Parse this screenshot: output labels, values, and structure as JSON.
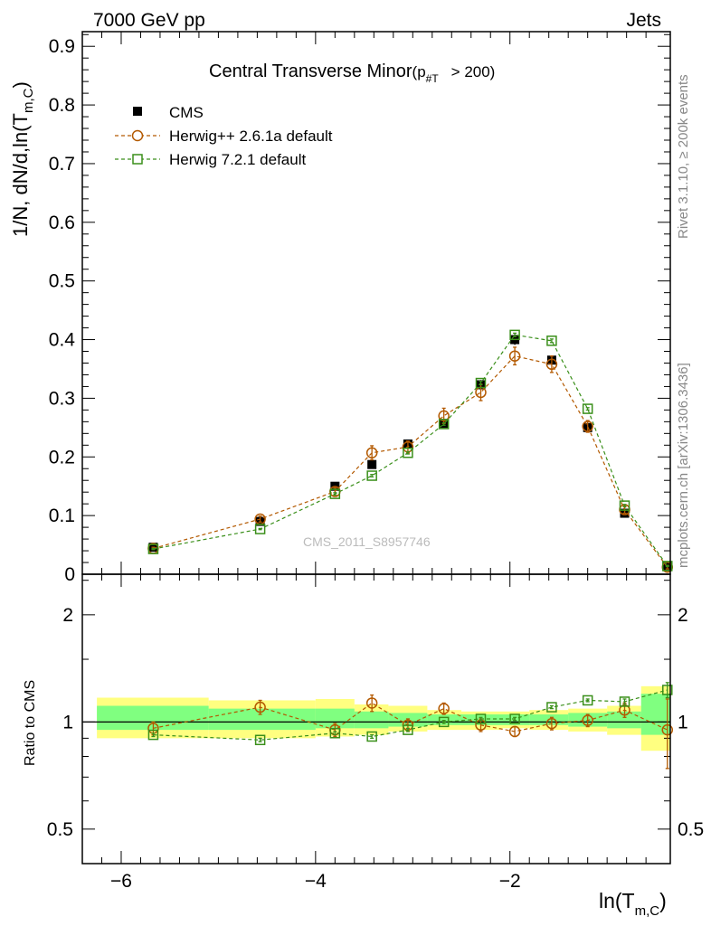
{
  "header": {
    "left": "7000 GeV pp",
    "right": "Jets"
  },
  "side_labels": {
    "top": "Rivet 3.1.10, ≥ 200k events",
    "bottom": "mcplots.cern.ch [arXiv:1306.3436]"
  },
  "watermark": "CMS_2011_S8957746",
  "colors": {
    "cms": "#000000",
    "herwig_pp": "#b35900",
    "herwig7": "#3a8f1a",
    "band_outer": "#ffff80",
    "band_inner": "#80ff80"
  },
  "chart_data": [
    {
      "type": "line",
      "title": "Central Transverse Minor",
      "title_selection": "(p",
      "title_selection_sub": "#T",
      "title_selection_cut": "> 200)",
      "ylabel": "1/N",
      "ylabel_rest": ", dN/d,ln(T",
      "ylabel_sub": "m,C",
      "ylabel_close": ")",
      "xlim": [
        -6.4,
        -0.35
      ],
      "ylim": [
        0,
        0.925
      ],
      "yticks": [
        0,
        0.1,
        0.2,
        0.3,
        0.4,
        0.5,
        0.6,
        0.7,
        0.8,
        0.9
      ],
      "ytick_labels": [
        "0",
        "0.1",
        "0.2",
        "0.3",
        "0.4",
        "0.5",
        "0.6",
        "0.7",
        "0.8",
        "0.9"
      ],
      "legend_position": "top-left",
      "series": [
        {
          "name": "CMS",
          "marker": "filled-square",
          "x": [
            -5.67,
            -4.57,
            -3.8,
            -3.42,
            -3.05,
            -2.68,
            -2.3,
            -1.95,
            -1.57,
            -1.2,
            -0.82,
            -0.38
          ],
          "y": [
            0.046,
            0.09,
            0.15,
            0.187,
            0.222,
            0.257,
            0.323,
            0.4,
            0.365,
            0.25,
            0.104,
            0.013
          ],
          "err": [
            0.003,
            0.005,
            0.006,
            0.006,
            0.006,
            0.007,
            0.008,
            0.009,
            0.008,
            0.007,
            0.005,
            0.002
          ]
        },
        {
          "name": "Herwig++ 2.6.1a default",
          "marker": "open-circle",
          "x": [
            -5.67,
            -4.57,
            -3.8,
            -3.42,
            -3.05,
            -2.68,
            -2.3,
            -1.95,
            -1.57,
            -1.2,
            -0.82,
            -0.38
          ],
          "y": [
            0.044,
            0.094,
            0.141,
            0.207,
            0.217,
            0.27,
            0.31,
            0.372,
            0.358,
            0.252,
            0.11,
            0.012
          ],
          "err": [
            0.002,
            0.005,
            0.006,
            0.012,
            0.01,
            0.013,
            0.014,
            0.015,
            0.014,
            0.01,
            0.006,
            0.003
          ]
        },
        {
          "name": "Herwig 7.2.1 default",
          "marker": "open-square",
          "x": [
            -5.67,
            -4.57,
            -3.8,
            -3.42,
            -3.05,
            -2.68,
            -2.3,
            -1.95,
            -1.57,
            -1.2,
            -0.82,
            -0.38
          ],
          "y": [
            0.043,
            0.077,
            0.137,
            0.168,
            0.207,
            0.256,
            0.326,
            0.408,
            0.398,
            0.282,
            0.117,
            0.014
          ],
          "err": [
            0.001,
            0.001,
            0.002,
            0.002,
            0.002,
            0.002,
            0.003,
            0.003,
            0.003,
            0.002,
            0.002,
            0.001
          ]
        }
      ]
    },
    {
      "type": "line",
      "ylabel": "Ratio to CMS",
      "xlabel": "ln(T",
      "xlabel_sub": "m,C",
      "xlabel_close": ")",
      "xlim": [
        -6.4,
        -0.35
      ],
      "ylim": [
        0.4,
        2.6
      ],
      "log_y": true,
      "yticks": [
        0.5,
        1,
        2
      ],
      "ytick_labels": [
        "0.5",
        "1",
        "2"
      ],
      "xticks": [
        -6,
        -4,
        -2
      ],
      "xtick_labels": [
        "−6",
        "−4",
        "−2"
      ],
      "reference_line": 1,
      "uncertainty_bands": {
        "bin_edges": [
          -6.25,
          -5.1,
          -4.0,
          -3.6,
          -3.25,
          -2.85,
          -2.5,
          -2.1,
          -1.8,
          -1.4,
          -1.0,
          -0.65,
          -0.35
        ],
        "outer": [
          [
            0.9,
            1.17
          ],
          [
            0.9,
            1.15
          ],
          [
            0.91,
            1.16
          ],
          [
            0.92,
            1.12
          ],
          [
            0.94,
            1.11
          ],
          [
            0.95,
            1.08
          ],
          [
            0.95,
            1.07
          ],
          [
            0.96,
            1.07
          ],
          [
            0.95,
            1.08
          ],
          [
            0.94,
            1.09
          ],
          [
            0.92,
            1.11
          ],
          [
            0.83,
            1.26
          ]
        ],
        "inner": [
          [
            0.95,
            1.11
          ],
          [
            0.95,
            1.09
          ],
          [
            0.96,
            1.09
          ],
          [
            0.96,
            1.07
          ],
          [
            0.97,
            1.06
          ],
          [
            0.98,
            1.05
          ],
          [
            0.98,
            1.05
          ],
          [
            0.98,
            1.05
          ],
          [
            0.98,
            1.05
          ],
          [
            0.97,
            1.06
          ],
          [
            0.96,
            1.07
          ],
          [
            0.92,
            1.2
          ]
        ]
      },
      "series": [
        {
          "name": "Herwig++ 2.6.1a default",
          "marker": "open-circle",
          "x": [
            -5.67,
            -4.57,
            -3.8,
            -3.42,
            -3.05,
            -2.68,
            -2.3,
            -1.95,
            -1.57,
            -1.2,
            -0.82,
            -0.38
          ],
          "y": [
            0.96,
            1.1,
            0.95,
            1.13,
            0.98,
            1.09,
            0.98,
            0.94,
            0.99,
            1.01,
            1.08,
            0.95
          ],
          "err": [
            0.04,
            0.05,
            0.04,
            0.06,
            0.04,
            0.04,
            0.04,
            0.03,
            0.04,
            0.04,
            0.05,
            0.21
          ]
        },
        {
          "name": "Herwig 7.2.1 default",
          "marker": "open-square",
          "x": [
            -5.67,
            -4.57,
            -3.8,
            -3.42,
            -3.05,
            -2.68,
            -2.3,
            -1.95,
            -1.57,
            -1.2,
            -0.82,
            -0.38
          ],
          "y": [
            0.92,
            0.89,
            0.93,
            0.91,
            0.95,
            1.0,
            1.02,
            1.02,
            1.1,
            1.15,
            1.14,
            1.23
          ],
          "err": [
            0.01,
            0.01,
            0.01,
            0.01,
            0.01,
            0.01,
            0.01,
            0.01,
            0.01,
            0.01,
            0.02,
            0.06
          ]
        }
      ]
    }
  ]
}
